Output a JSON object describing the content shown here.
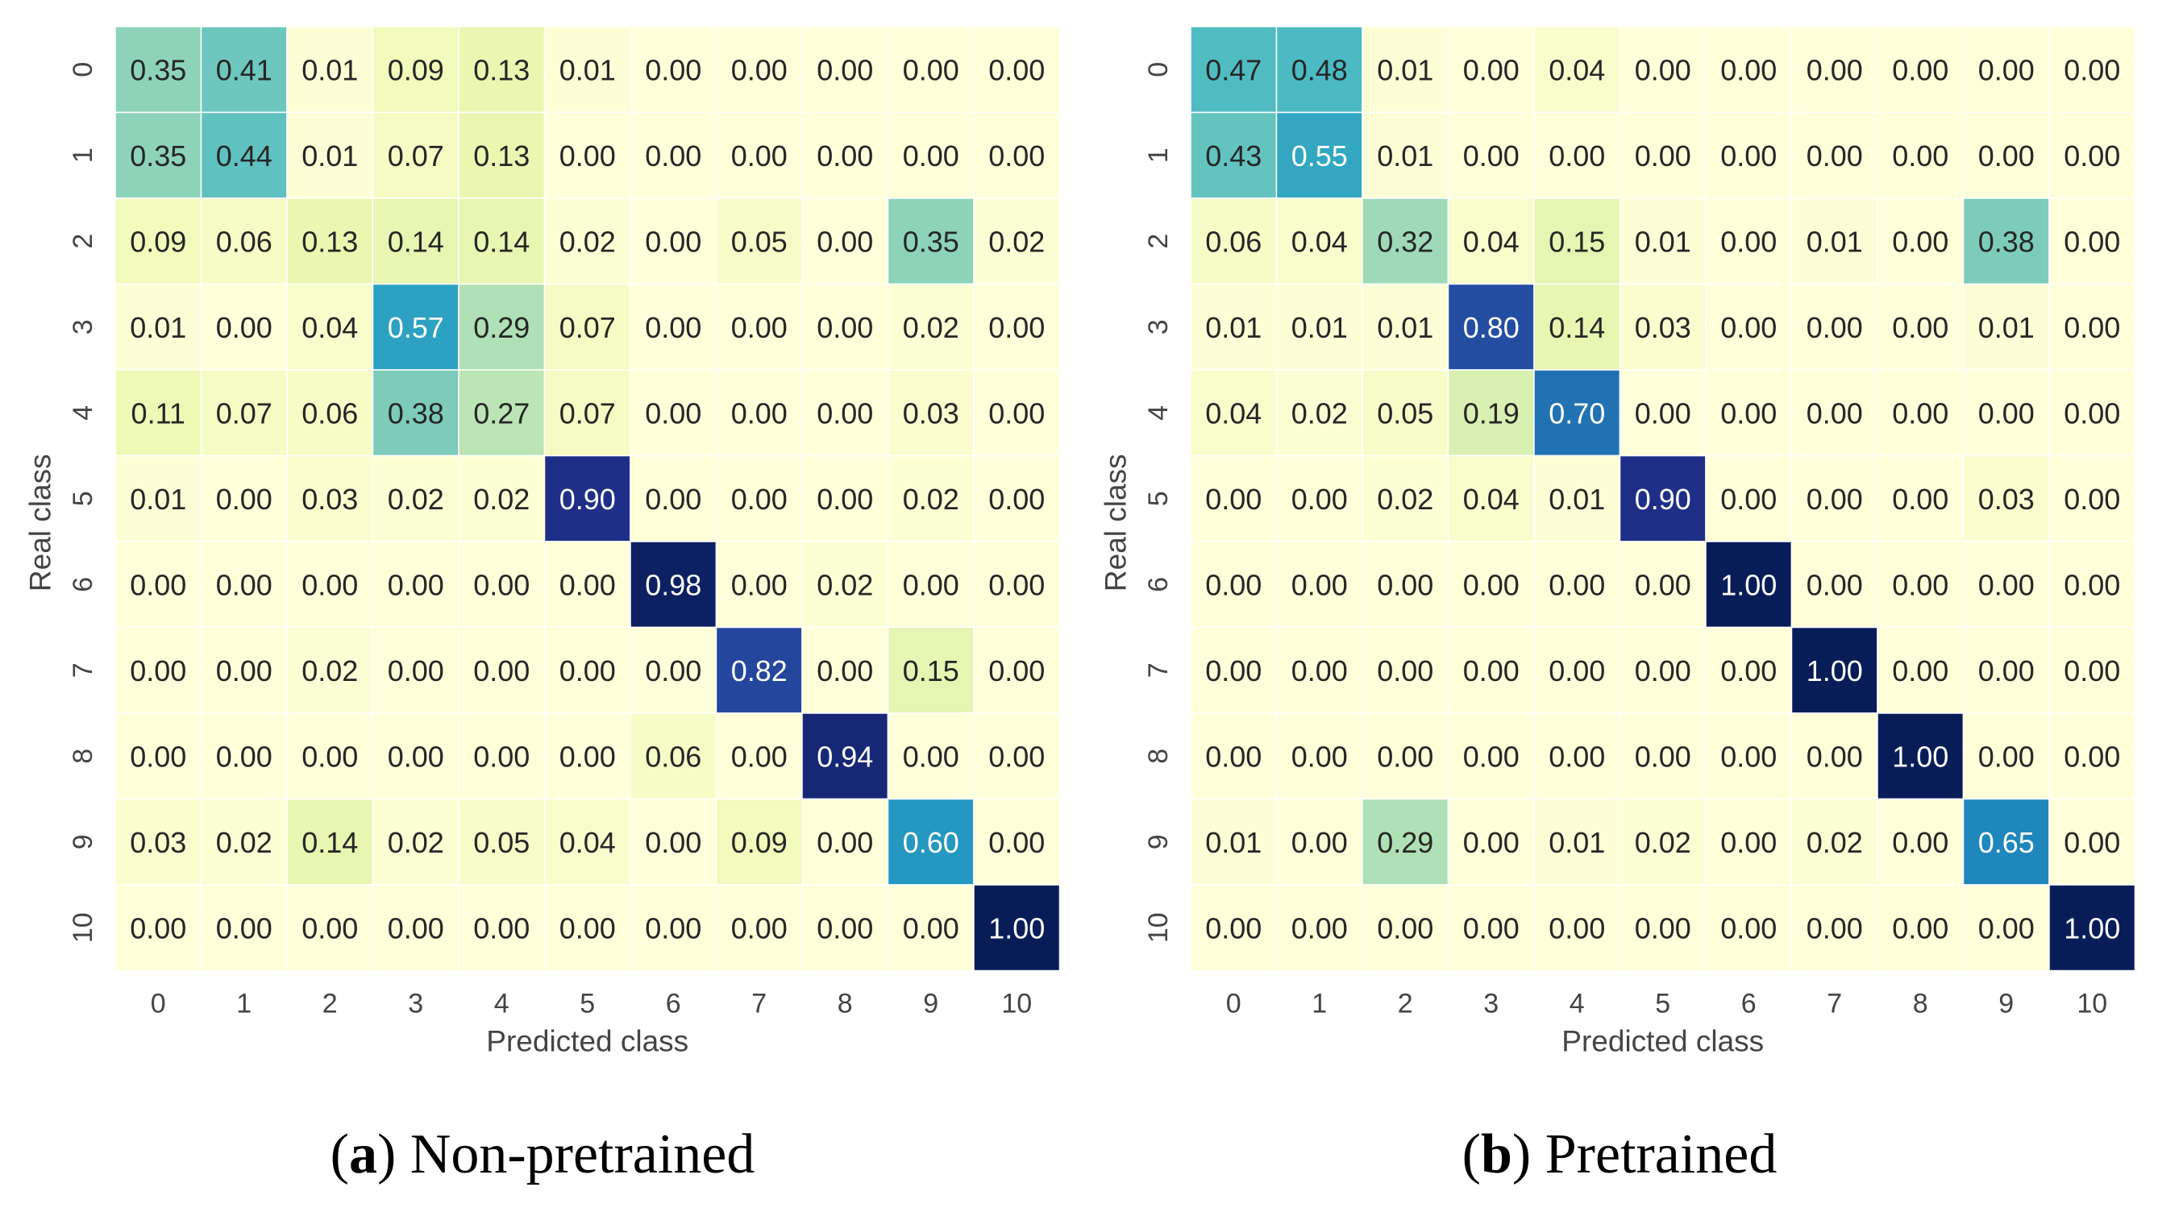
{
  "chart_data": [
    {
      "type": "heatmap",
      "caption": {
        "letter": "a",
        "text": "Non-pretrained"
      },
      "xlabel": "Predicted class",
      "ylabel": "Real class",
      "x_ticks": [
        "0",
        "1",
        "2",
        "3",
        "4",
        "5",
        "6",
        "7",
        "8",
        "9",
        "10"
      ],
      "y_ticks": [
        "0",
        "1",
        "2",
        "3",
        "4",
        "5",
        "6",
        "7",
        "8",
        "9",
        "10"
      ],
      "value_range": [
        0,
        1
      ],
      "colormap": "YlGnBu",
      "matrix": [
        [
          "0.35",
          "0.41",
          "0.01",
          "0.09",
          "0.13",
          "0.01",
          "0.00",
          "0.00",
          "0.00",
          "0.00",
          "0.00"
        ],
        [
          "0.35",
          "0.44",
          "0.01",
          "0.07",
          "0.13",
          "0.00",
          "0.00",
          "0.00",
          "0.00",
          "0.00",
          "0.00"
        ],
        [
          "0.09",
          "0.06",
          "0.13",
          "0.14",
          "0.14",
          "0.02",
          "0.00",
          "0.05",
          "0.00",
          "0.35",
          "0.02"
        ],
        [
          "0.01",
          "0.00",
          "0.04",
          "0.57",
          "0.29",
          "0.07",
          "0.00",
          "0.00",
          "0.00",
          "0.02",
          "0.00"
        ],
        [
          "0.11",
          "0.07",
          "0.06",
          "0.38",
          "0.27",
          "0.07",
          "0.00",
          "0.00",
          "0.00",
          "0.03",
          "0.00"
        ],
        [
          "0.01",
          "0.00",
          "0.03",
          "0.02",
          "0.02",
          "0.90",
          "0.00",
          "0.00",
          "0.00",
          "0.02",
          "0.00"
        ],
        [
          "0.00",
          "0.00",
          "0.00",
          "0.00",
          "0.00",
          "0.00",
          "0.98",
          "0.00",
          "0.02",
          "0.00",
          "0.00"
        ],
        [
          "0.00",
          "0.00",
          "0.02",
          "0.00",
          "0.00",
          "0.00",
          "0.00",
          "0.82",
          "0.00",
          "0.15",
          "0.00"
        ],
        [
          "0.00",
          "0.00",
          "0.00",
          "0.00",
          "0.00",
          "0.00",
          "0.06",
          "0.00",
          "0.94",
          "0.00",
          "0.00"
        ],
        [
          "0.03",
          "0.02",
          "0.14",
          "0.02",
          "0.05",
          "0.04",
          "0.00",
          "0.09",
          "0.00",
          "0.60",
          "0.00"
        ],
        [
          "0.00",
          "0.00",
          "0.00",
          "0.00",
          "0.00",
          "0.00",
          "0.00",
          "0.00",
          "0.00",
          "0.00",
          "1.00"
        ]
      ]
    },
    {
      "type": "heatmap",
      "caption": {
        "letter": "b",
        "text": "Pretrained"
      },
      "xlabel": "Predicted class",
      "ylabel": "Real class",
      "x_ticks": [
        "0",
        "1",
        "2",
        "3",
        "4",
        "5",
        "6",
        "7",
        "8",
        "9",
        "10"
      ],
      "y_ticks": [
        "0",
        "1",
        "2",
        "3",
        "4",
        "5",
        "6",
        "7",
        "8",
        "9",
        "10"
      ],
      "value_range": [
        0,
        1
      ],
      "colormap": "YlGnBu",
      "matrix": [
        [
          "0.47",
          "0.48",
          "0.01",
          "0.00",
          "0.04",
          "0.00",
          "0.00",
          "0.00",
          "0.00",
          "0.00",
          "0.00"
        ],
        [
          "0.43",
          "0.55",
          "0.01",
          "0.00",
          "0.00",
          "0.00",
          "0.00",
          "0.00",
          "0.00",
          "0.00",
          "0.00"
        ],
        [
          "0.06",
          "0.04",
          "0.32",
          "0.04",
          "0.15",
          "0.01",
          "0.00",
          "0.01",
          "0.00",
          "0.38",
          "0.00"
        ],
        [
          "0.01",
          "0.01",
          "0.01",
          "0.80",
          "0.14",
          "0.03",
          "0.00",
          "0.00",
          "0.00",
          "0.01",
          "0.00"
        ],
        [
          "0.04",
          "0.02",
          "0.05",
          "0.19",
          "0.70",
          "0.00",
          "0.00",
          "0.00",
          "0.00",
          "0.00",
          "0.00"
        ],
        [
          "0.00",
          "0.00",
          "0.02",
          "0.04",
          "0.01",
          "0.90",
          "0.00",
          "0.00",
          "0.00",
          "0.03",
          "0.00"
        ],
        [
          "0.00",
          "0.00",
          "0.00",
          "0.00",
          "0.00",
          "0.00",
          "1.00",
          "0.00",
          "0.00",
          "0.00",
          "0.00"
        ],
        [
          "0.00",
          "0.00",
          "0.00",
          "0.00",
          "0.00",
          "0.00",
          "0.00",
          "1.00",
          "0.00",
          "0.00",
          "0.00"
        ],
        [
          "0.00",
          "0.00",
          "0.00",
          "0.00",
          "0.00",
          "0.00",
          "0.00",
          "0.00",
          "1.00",
          "0.00",
          "0.00"
        ],
        [
          "0.01",
          "0.00",
          "0.29",
          "0.00",
          "0.01",
          "0.02",
          "0.00",
          "0.02",
          "0.00",
          "0.65",
          "0.00"
        ],
        [
          "0.00",
          "0.00",
          "0.00",
          "0.00",
          "0.00",
          "0.00",
          "0.00",
          "0.00",
          "0.00",
          "0.00",
          "1.00"
        ]
      ]
    }
  ]
}
